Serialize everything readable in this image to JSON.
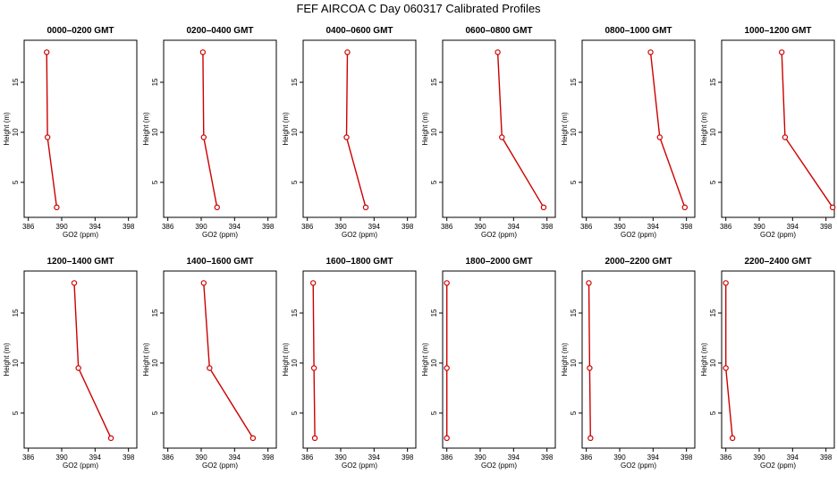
{
  "chart_data": {
    "type": "line",
    "title": "FEF AIRCOA C  Day 060317  Calibrated Profiles",
    "xlabel": "GO2 (ppm)",
    "ylabel": "Height (m)",
    "xlim": [
      385.5,
      399
    ],
    "ylim": [
      1.5,
      19.2
    ],
    "xticks": [
      386,
      390,
      394,
      398
    ],
    "yticks": [
      5,
      10,
      15
    ],
    "line_color": "#cc0000",
    "marker": "open-circle",
    "heights": [
      18,
      9.5,
      2.5
    ],
    "panels": [
      {
        "title": "0000–0200 GMT",
        "values": [
          388.2,
          388.3,
          389.4
        ]
      },
      {
        "title": "0200–0400 GMT",
        "values": [
          390.2,
          390.3,
          391.9
        ]
      },
      {
        "title": "0400–0600 GMT",
        "values": [
          390.8,
          390.7,
          393.0
        ]
      },
      {
        "title": "0600–0800 GMT",
        "values": [
          392.1,
          392.6,
          397.6
        ]
      },
      {
        "title": "0800–1000 GMT",
        "values": [
          393.7,
          394.8,
          397.8
        ]
      },
      {
        "title": "1000–1200 GMT",
        "values": [
          392.7,
          393.1,
          398.8
        ]
      },
      {
        "title": "1200–1400 GMT",
        "values": [
          391.5,
          392.0,
          395.9
        ]
      },
      {
        "title": "1400–1600 GMT",
        "values": [
          390.3,
          391.0,
          396.2
        ]
      },
      {
        "title": "1600–1800 GMT",
        "values": [
          386.7,
          386.8,
          386.9
        ]
      },
      {
        "title": "1800–2000 GMT",
        "values": [
          386.0,
          386.0,
          386.0
        ]
      },
      {
        "title": "2000–2200 GMT",
        "values": [
          386.3,
          386.4,
          386.5
        ]
      },
      {
        "title": "2200–2400 GMT",
        "values": [
          386.0,
          386.0,
          386.8
        ]
      }
    ]
  }
}
